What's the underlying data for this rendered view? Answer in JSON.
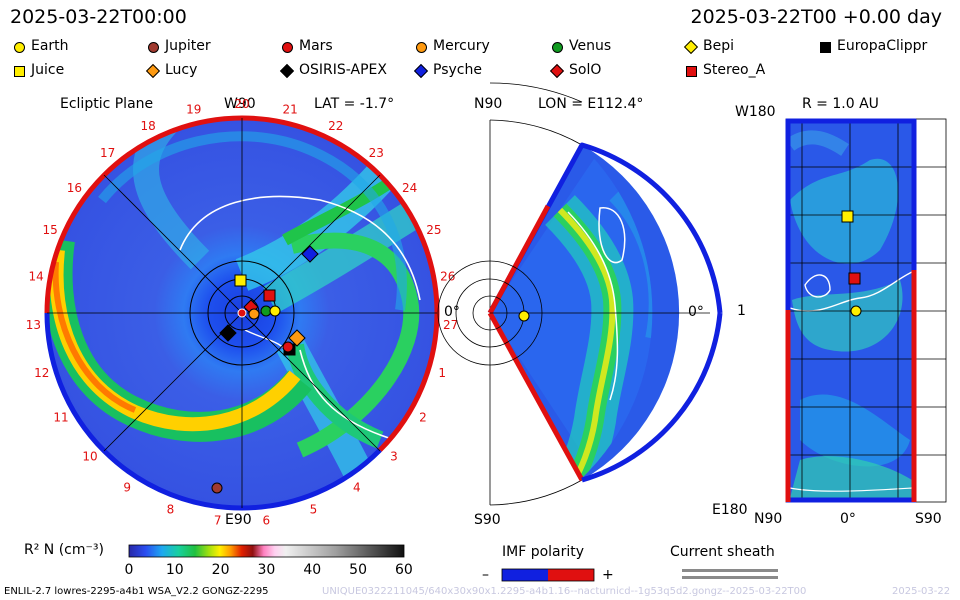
{
  "header": {
    "left_datetime": "2025-03-22T00:00",
    "right_datetime": "2025-03-22T00 +0.00 day"
  },
  "legend": [
    {
      "name": "Earth",
      "shape": "circle",
      "color": "#ffee00"
    },
    {
      "name": "Jupiter",
      "shape": "circle",
      "color": "#a03a30"
    },
    {
      "name": "Mars",
      "shape": "circle",
      "color": "#e01010"
    },
    {
      "name": "Mercury",
      "shape": "circle",
      "color": "#ff9a10"
    },
    {
      "name": "Venus",
      "shape": "circle",
      "color": "#109a20"
    },
    {
      "name": "Bepi",
      "shape": "diamond",
      "color": "#ffee00"
    },
    {
      "name": "EuropaClippr",
      "shape": "square",
      "color": "#000000"
    },
    {
      "name": "Juice",
      "shape": "square",
      "color": "#ffee00"
    },
    {
      "name": "Lucy",
      "shape": "diamond",
      "color": "#ff9a10"
    },
    {
      "name": "OSIRIS-APEX",
      "shape": "diamond",
      "color": "#000000"
    },
    {
      "name": "Psyche",
      "shape": "diamond",
      "color": "#1020e0"
    },
    {
      "name": "SolO",
      "shape": "diamond",
      "color": "#e01010"
    },
    {
      "name": "Stereo_A",
      "shape": "square",
      "color": "#e01010"
    }
  ],
  "ecliptic": {
    "title": "Ecliptic Plane",
    "top_label": "W90",
    "lat_label": "LAT = -1.7°",
    "right_label": "0°",
    "bottom_label": "E90",
    "carrington_ticks": [
      "20",
      "21",
      "22",
      "23",
      "24",
      "25",
      "26",
      "27",
      "1",
      "2",
      "3",
      "4",
      "5",
      "6",
      "7",
      "8",
      "9",
      "10",
      "11",
      "12",
      "13",
      "14",
      "15",
      "16",
      "17",
      "18",
      "19"
    ]
  },
  "meridional": {
    "top_label": "N90",
    "lon_label": "LON = E112.4°",
    "right_label": "0°",
    "bottom_label": "S90"
  },
  "radial": {
    "top_label": "W180",
    "r_label": "R = 1.0 AU",
    "mid_label": "1",
    "bottom_label": "E180",
    "x_labels": [
      "N90",
      "0°",
      "S90"
    ]
  },
  "colorbar": {
    "label": "R² N (cm⁻³)",
    "ticks": [
      "0",
      "10",
      "20",
      "30",
      "40",
      "50",
      "60"
    ]
  },
  "imf": {
    "label": "IMF polarity",
    "minus": "–",
    "plus": "+",
    "neg_color": "#1020e0",
    "pos_color": "#e01010"
  },
  "current_sheet": {
    "label": "Current sheath"
  },
  "footer": {
    "model_info": "ENLIL-2.7 lowres-2295-a4b1 WSA_V2.2 GONGZ-2295",
    "run_id": "UNIQUE0322211045/640x30x90x1.2295-a4b1.16--nacturnicd--1g53q5d2.gongz--2025-03-22T00",
    "right_date": "2025-03-22"
  }
}
